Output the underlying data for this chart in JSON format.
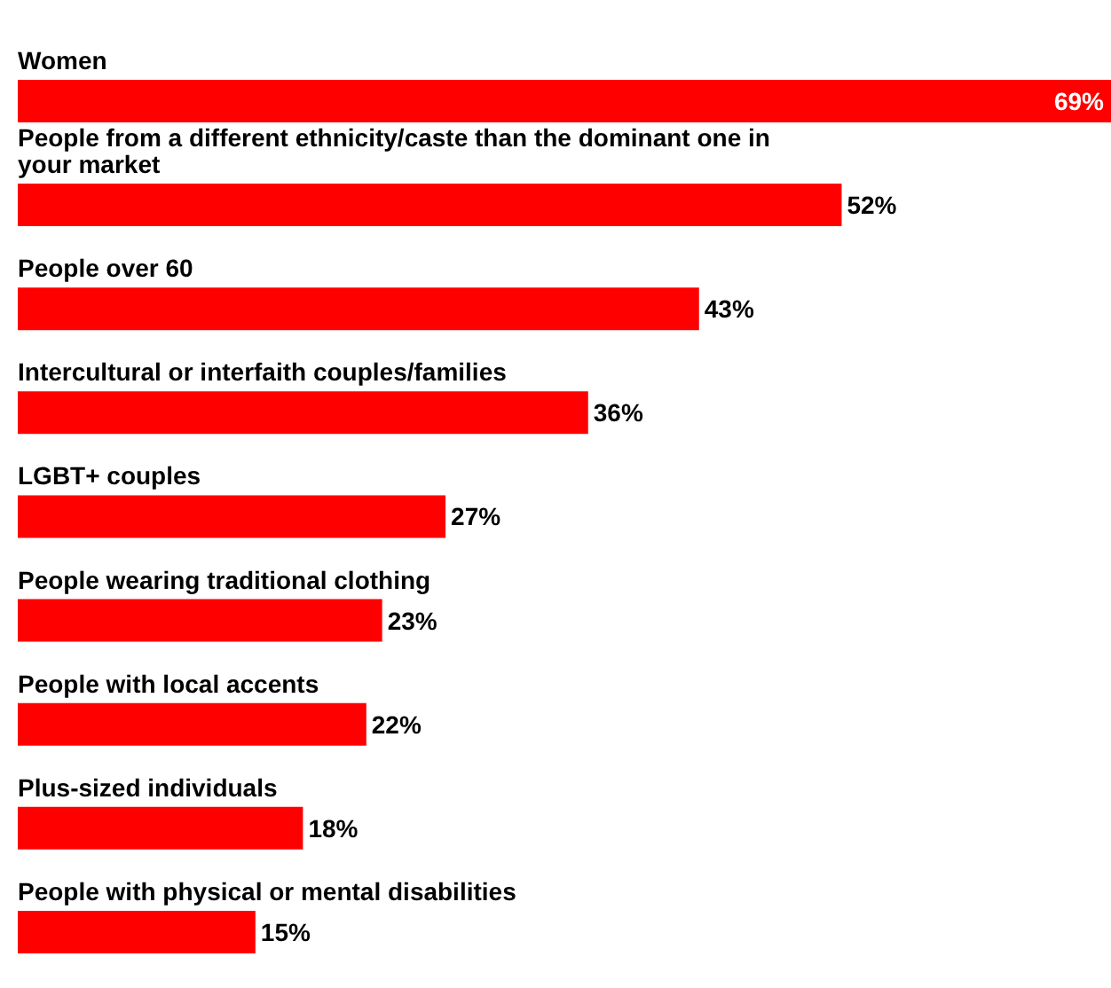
{
  "chart_data": {
    "type": "bar",
    "orientation": "horizontal",
    "tick_labels": "y",
    "categories": [
      "Women",
      "People from a different ethnicity/caste than the dominant one in your market",
      "People over 60",
      "Intercultural or interfaith couples/families",
      "LGBT+ couples",
      "People wearing traditional clothing",
      "People with local accents",
      "Plus-sized individuals",
      "People with physical or mental disabilities"
    ],
    "values": [
      69,
      52,
      43,
      36,
      27,
      23,
      22,
      18,
      15
    ],
    "value_labels": [
      "69%",
      "52%",
      "43%",
      "36%",
      "27%",
      "23%",
      "22%",
      "18%",
      "15%"
    ],
    "color": "#ff0000"
  }
}
